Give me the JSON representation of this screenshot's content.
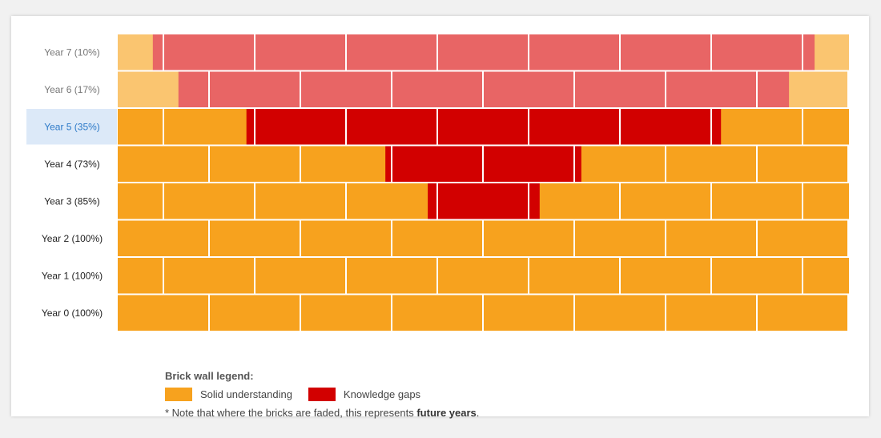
{
  "colors": {
    "solid": "#F7A21E",
    "gap": "#D20000",
    "solid_faded": "#FAC570",
    "gap_faded": "#E86565",
    "mortar": "#ffffff",
    "highlight_bg": "#DCE9F8",
    "highlight_text": "#2C79C8",
    "label_text": "#222222",
    "faded_label_text": "#777777"
  },
  "chart_data": {
    "type": "brick-wall",
    "rows": [
      {
        "label": "Year 7 (10%)",
        "value": 10,
        "faded": true,
        "highlighted": false,
        "gap_range": [
          0.048,
          0.953
        ]
      },
      {
        "label": "Year 6 (17%)",
        "value": 17,
        "faded": true,
        "highlighted": false,
        "gap_range": [
          0.083,
          0.918
        ]
      },
      {
        "label": "Year 5 (35%)",
        "value": 35,
        "faded": false,
        "highlighted": true,
        "gap_range": [
          0.176,
          0.825
        ]
      },
      {
        "label": "Year 4 (73%)",
        "value": 73,
        "faded": false,
        "highlighted": false,
        "gap_range": [
          0.366,
          0.634
        ]
      },
      {
        "label": "Year 3 (85%)",
        "value": 85,
        "faded": false,
        "highlighted": false,
        "gap_range": [
          0.424,
          0.577
        ]
      },
      {
        "label": "Year 2 (100%)",
        "value": 100,
        "faded": false,
        "highlighted": false,
        "gap_range": null
      },
      {
        "label": "Year 1 (100%)",
        "value": 100,
        "faded": false,
        "highlighted": false,
        "gap_range": null
      },
      {
        "label": "Year 0 (100%)",
        "value": 100,
        "faded": false,
        "highlighted": false,
        "gap_range": null
      }
    ],
    "legend": {
      "title": "Brick wall legend:",
      "items": [
        {
          "label": "Solid understanding",
          "color": "#F7A21E"
        },
        {
          "label": "Knowledge gaps",
          "color": "#D20000"
        }
      ],
      "note_prefix": "* Note that where the bricks are faded, this represents ",
      "note_bold": "future years",
      "note_suffix": "."
    }
  }
}
